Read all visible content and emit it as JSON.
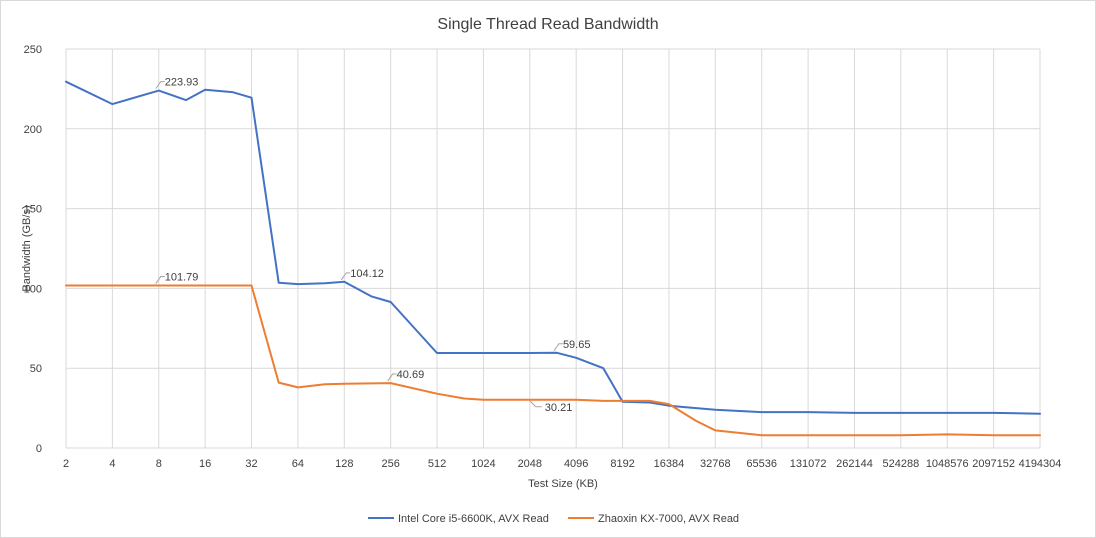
{
  "chart_data": {
    "type": "line",
    "title": "Single Thread Read Bandwidth",
    "xlabel": "Test Size (KB)",
    "ylabel": "Bandwidth (GB/s)",
    "x_scale": "log2",
    "categories": [
      "2",
      "4",
      "8",
      "16",
      "32",
      "64",
      "128",
      "256",
      "512",
      "1024",
      "2048",
      "4096",
      "8192",
      "16384",
      "32768",
      "65536",
      "131072",
      "262144",
      "524288",
      "1048576",
      "2097152",
      "4194304"
    ],
    "ylim": [
      0,
      250
    ],
    "yticks": [
      0,
      50,
      100,
      150,
      200,
      250
    ],
    "grid": true,
    "legend_position": "bottom",
    "series": [
      {
        "name": "Intel Core i5-6600K, AVX Read",
        "color": "#4472c4",
        "x": [
          2,
          4,
          8,
          12,
          16,
          24,
          32,
          48,
          64,
          96,
          128,
          192,
          256,
          512,
          1024,
          2048,
          3072,
          4096,
          6144,
          8192,
          12288,
          16384,
          24576,
          32768,
          65536,
          131072,
          262144,
          524288,
          1048576,
          2097152,
          4194304
        ],
        "y": [
          229.5,
          215.5,
          223.93,
          218,
          224.5,
          223,
          219.5,
          103.5,
          102.7,
          103.2,
          104.12,
          95,
          91.5,
          59.5,
          59.5,
          59.5,
          59.65,
          56.5,
          50,
          29,
          28.5,
          26.5,
          25,
          24,
          22.5,
          22.5,
          22,
          22,
          22,
          22,
          21.5
        ]
      },
      {
        "name": "Zhaoxin KX-7000, AVX Read",
        "color": "#ed7d31",
        "x": [
          2,
          4,
          8,
          12,
          16,
          24,
          32,
          48,
          64,
          96,
          128,
          192,
          256,
          512,
          768,
          1024,
          2048,
          4096,
          6144,
          8192,
          12288,
          16384,
          24576,
          32768,
          65536,
          131072,
          262144,
          524288,
          1048576,
          2097152,
          4194304
        ],
        "y": [
          101.79,
          101.79,
          101.79,
          101.79,
          101.79,
          101.79,
          101.79,
          41,
          38,
          40,
          40.3,
          40.5,
          40.69,
          34,
          31,
          30.21,
          30.21,
          30.21,
          29.5,
          29.5,
          29.5,
          27.5,
          17,
          11,
          8,
          8,
          8,
          8,
          8.5,
          8,
          8
        ]
      }
    ],
    "annotations": [
      {
        "series": 0,
        "x": 8,
        "y": 223.93,
        "text": "223.93"
      },
      {
        "series": 0,
        "x": 128,
        "y": 104.12,
        "text": "104.12"
      },
      {
        "series": 0,
        "x": 3072,
        "y": 59.65,
        "text": "59.65"
      },
      {
        "series": 1,
        "x": 8,
        "y": 101.79,
        "text": "101.79"
      },
      {
        "series": 1,
        "x": 256,
        "y": 40.69,
        "text": "40.69"
      },
      {
        "series": 1,
        "x": 2048,
        "y": 30.21,
        "text": "30.21"
      }
    ]
  }
}
